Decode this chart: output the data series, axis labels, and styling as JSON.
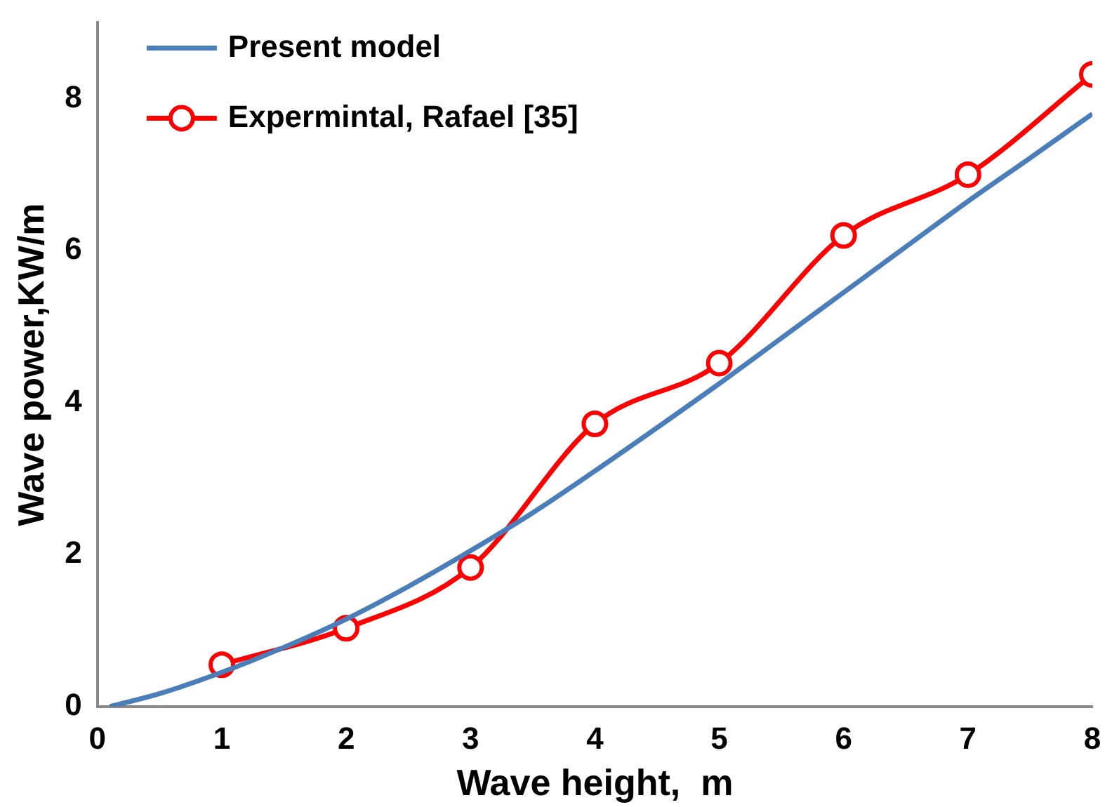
{
  "chart_data": {
    "type": "line",
    "xlabel": "Wave height,  m",
    "ylabel": "Wave power,KW/m",
    "xlim": [
      0,
      8
    ],
    "xticks": [
      0,
      1,
      2,
      3,
      4,
      5,
      6,
      7,
      8
    ],
    "ylim": [
      0,
      9
    ],
    "yticks": [
      0,
      2,
      4,
      6,
      8
    ],
    "grid": false,
    "legend": "top left",
    "series": [
      {
        "name": "Present model",
        "color": "#4a7ebb",
        "marker": "none",
        "x": [
          0.1,
          0.5,
          1,
          1.5,
          2,
          2.5,
          3,
          3.5,
          4,
          4.5,
          5,
          5.5,
          6,
          6.5,
          7,
          7.5,
          8
        ],
        "values": [
          0,
          0.17,
          0.45,
          0.78,
          1.15,
          1.58,
          2.05,
          2.55,
          3.1,
          3.67,
          4.25,
          4.85,
          5.45,
          6.05,
          6.65,
          7.22,
          7.8
        ]
      },
      {
        "name": "Expermintal, Rafael [35]",
        "color": "#ff0000",
        "marker": "circle",
        "x": [
          1,
          2,
          3,
          4,
          5,
          6,
          7,
          8
        ],
        "values": [
          0.55,
          1.03,
          1.83,
          3.72,
          4.52,
          6.2,
          7.0,
          8.32
        ]
      }
    ]
  }
}
